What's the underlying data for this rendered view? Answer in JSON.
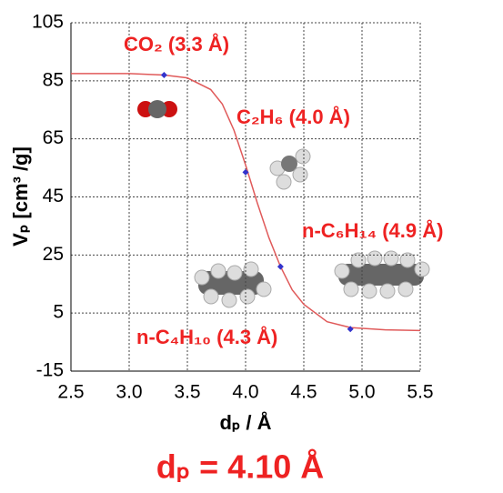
{
  "chart_data": {
    "type": "scatter",
    "xlabel": "dₚ / Å",
    "ylabel": "Vₚ [cm³ /g]",
    "xlim": [
      2.5,
      5.5
    ],
    "ylim": [
      -15,
      105
    ],
    "xticks": [
      2.5,
      {
        "value": 3,
        "label": "3.0"
      },
      3.5,
      {
        "value": 4,
        "label": "4.0"
      },
      4.5,
      {
        "value": 5,
        "label": "5.0"
      },
      5.5
    ],
    "yticks": [
      -15,
      5,
      25,
      45,
      65,
      85,
      105
    ],
    "grid": true,
    "series": [
      {
        "type": "line",
        "color": "#e05a5a",
        "x": [
          2.5,
          3.0,
          3.3,
          3.5,
          3.7,
          3.8,
          3.9,
          4.0,
          4.1,
          4.2,
          4.3,
          4.4,
          4.5,
          4.7,
          4.9,
          5.2,
          5.5
        ],
        "values": [
          87.5,
          87.5,
          87,
          86,
          82,
          77,
          68,
          56,
          43,
          31,
          21,
          13,
          8,
          2,
          0,
          -0.8,
          -1
        ]
      },
      {
        "type": "scatter",
        "color": "#3333cc",
        "x": [
          3.3,
          4.0,
          4.3,
          4.9
        ],
        "values": [
          87,
          53.5,
          21,
          -0.5
        ]
      }
    ],
    "annotations": [
      "CO₂ (3.3 Å)",
      "C₂H₆ (4.0 Å)",
      "n-C₆H₁₄  (4.9 Å)",
      "n-C₄H₁₀ (4.3 Å)"
    ],
    "result": "dₚ = 4.10 Å"
  }
}
